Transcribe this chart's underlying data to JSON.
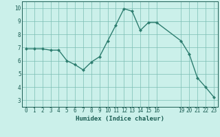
{
  "x": [
    0,
    1,
    2,
    3,
    4,
    5,
    6,
    7,
    8,
    9,
    10,
    11,
    12,
    13,
    14,
    15,
    16,
    19,
    20,
    21,
    22,
    23
  ],
  "y": [
    6.9,
    6.9,
    6.9,
    6.8,
    6.8,
    6.0,
    5.7,
    5.3,
    5.9,
    6.3,
    7.5,
    8.7,
    9.95,
    9.75,
    8.3,
    8.9,
    8.9,
    7.5,
    6.5,
    4.7,
    4.0,
    3.25
  ],
  "line_color": "#2d7d6f",
  "marker": "D",
  "marker_size": 2.0,
  "bg_color": "#cbf0ea",
  "grid_color": "#7abdb3",
  "xlabel": "Humidex (Indice chaleur)",
  "xlim": [
    -0.5,
    23.5
  ],
  "ylim": [
    2.5,
    10.5
  ],
  "yticks": [
    3,
    4,
    5,
    6,
    7,
    8,
    9,
    10
  ],
  "xticks": [
    0,
    1,
    2,
    3,
    4,
    5,
    6,
    7,
    8,
    9,
    10,
    11,
    12,
    13,
    14,
    15,
    16,
    19,
    20,
    21,
    22,
    23
  ],
  "font_color": "#1a5c52",
  "linewidth": 1.0,
  "tick_fontsize": 5.5,
  "xlabel_fontsize": 6.5
}
